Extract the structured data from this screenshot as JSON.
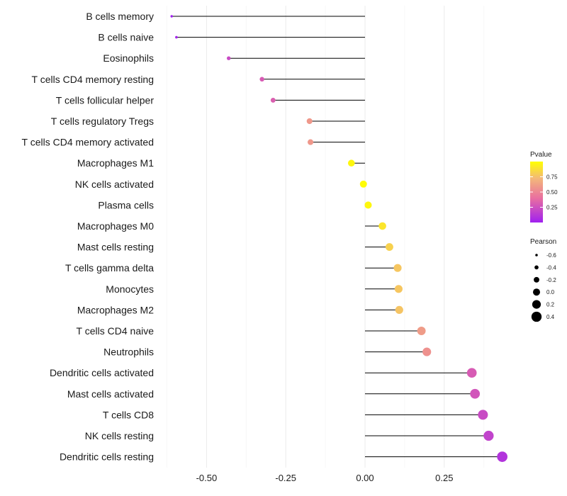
{
  "chart_data": {
    "type": "lollipop",
    "title": "",
    "xlabel": "",
    "ylabel": "",
    "xlim": [
      -0.62,
      0.47
    ],
    "x_ticks": [
      -0.5,
      -0.25,
      0.0,
      0.25
    ],
    "x_tick_labels": [
      "-0.50",
      "-0.25",
      "0.00",
      "0.25"
    ],
    "grid": true,
    "categories": [
      "B cells memory",
      "B cells naive",
      "Eosinophils",
      "T cells CD4 memory resting",
      "T cells follicular helper",
      "T cells regulatory  Tregs",
      "T cells CD4 memory activated",
      "Macrophages M1",
      "NK cells activated",
      "Plasma cells",
      "Macrophages M0",
      "Mast cells resting",
      "T cells gamma delta",
      "Monocytes",
      "Macrophages M2",
      "T cells CD4 naive",
      "Neutrophils",
      "Dendritic cells activated",
      "Mast cells activated",
      "T cells CD8",
      "NK cells resting",
      "Dendritic cells resting"
    ],
    "pearson": [
      -0.61,
      -0.595,
      -0.43,
      -0.325,
      -0.29,
      -0.175,
      -0.172,
      -0.043,
      -0.005,
      0.01,
      0.055,
      0.077,
      0.103,
      0.106,
      0.108,
      0.178,
      0.195,
      0.337,
      0.347,
      0.372,
      0.39,
      0.433
    ],
    "pvalue": [
      0.0,
      0.02,
      0.22,
      0.3,
      0.32,
      0.58,
      0.58,
      0.97,
      0.99,
      0.97,
      0.9,
      0.82,
      0.78,
      0.78,
      0.77,
      0.6,
      0.55,
      0.3,
      0.27,
      0.22,
      0.18,
      0.1
    ],
    "color_legend": {
      "title": "Pvalue",
      "ticks": [
        0.25,
        0.5,
        0.75
      ],
      "tick_labels": [
        "0.25",
        "0.50",
        "0.75"
      ],
      "gradient": [
        "#a020f0",
        "#e96fa0",
        "#f3b77a",
        "#ffff00"
      ]
    },
    "size_legend": {
      "title": "Pearson",
      "values": [
        -0.6,
        -0.4,
        -0.2,
        0.0,
        0.2,
        0.4
      ],
      "labels": [
        "-0.6",
        "-0.4",
        "-0.2",
        "0.0",
        "0.2",
        "0.4"
      ]
    }
  }
}
